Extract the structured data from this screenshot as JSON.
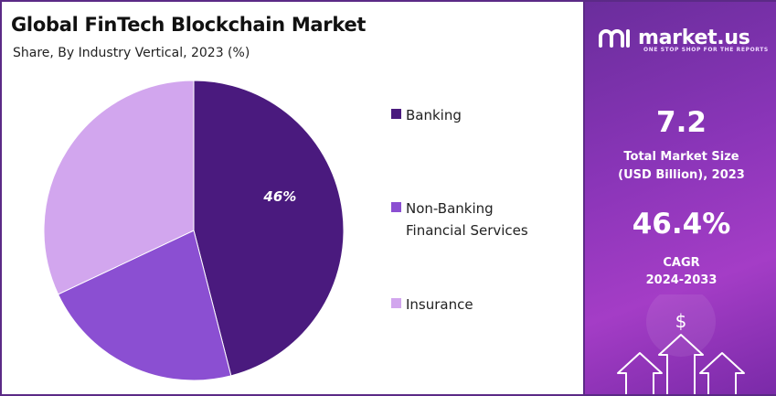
{
  "chart_data": {
    "type": "pie",
    "title": "Global FinTech Blockchain Market",
    "subtitle": "Share, By Industry Vertical, 2023 (%)",
    "categories": [
      "Banking",
      "Non-Banking Financial Services",
      "Insurance"
    ],
    "values": [
      46,
      22,
      32
    ],
    "data_labels": [
      "46%",
      "",
      ""
    ],
    "colors": [
      "#4a1a7e",
      "#8b4fd2",
      "#d2a6ee"
    ],
    "legend": {
      "placement": "right"
    }
  },
  "legend_lines": [
    [
      "Banking"
    ],
    [
      "Non-Banking",
      "Financial Services"
    ],
    [
      "Insurance"
    ]
  ],
  "sidebar": {
    "brand": "market.us",
    "tagline": "ONE STOP SHOP FOR THE REPORTS",
    "market_size_value": "7.2",
    "market_size_label_1": "Total Market Size",
    "market_size_label_2": "(USD Billion), 2023",
    "cagr_value": "46.4%",
    "cagr_label_1": "CAGR",
    "cagr_label_2": "2024-2033",
    "deco_symbol": "$",
    "accent_color": "#8a35b8"
  }
}
